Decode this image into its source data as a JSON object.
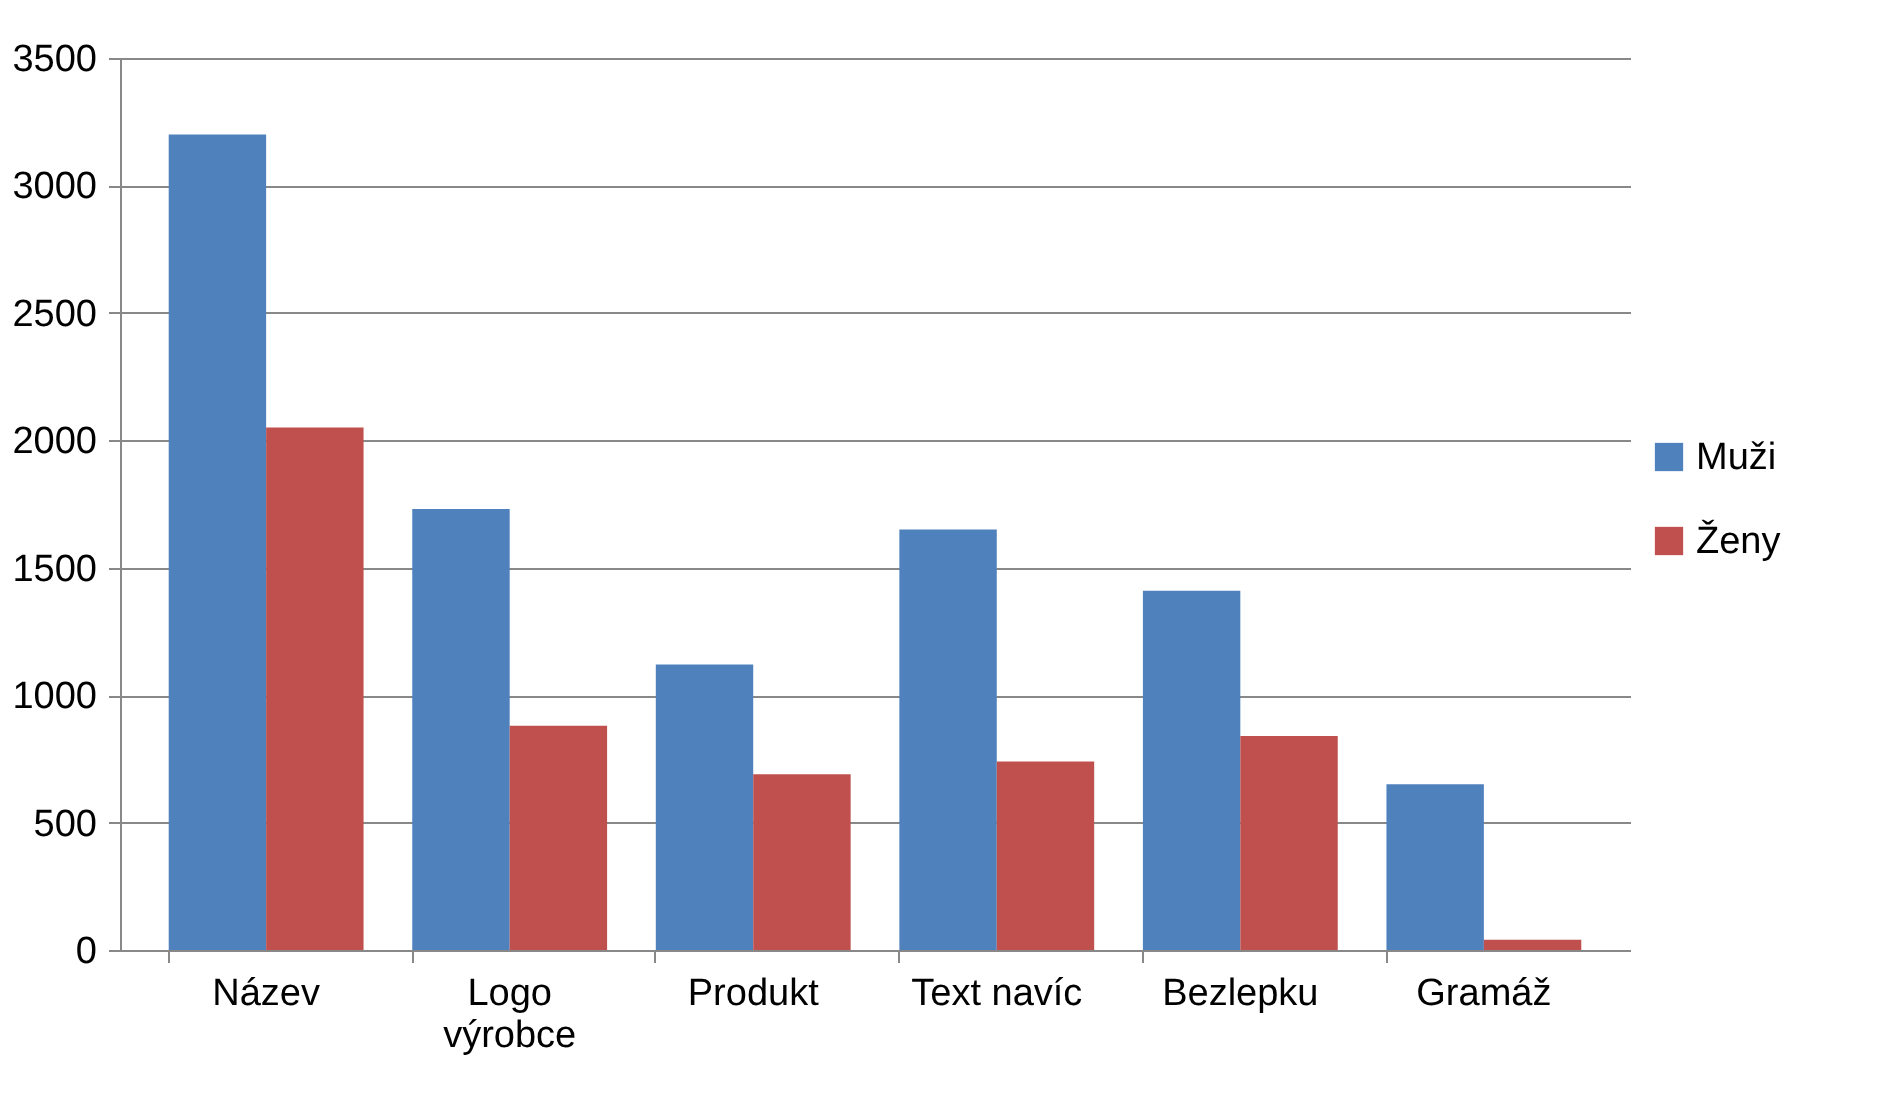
{
  "chart_data": {
    "type": "bar",
    "categories": [
      "Název",
      "Logo výrobce",
      "Produkt",
      "Text navíc",
      "Bezlepku",
      "Gramáž"
    ],
    "series": [
      {
        "name": "Muži",
        "color": "#4f81bd",
        "values": [
          3200,
          1730,
          1120,
          1650,
          1410,
          650
        ]
      },
      {
        "name": "Ženy",
        "color": "#c0504d",
        "values": [
          2050,
          880,
          690,
          740,
          840,
          40
        ]
      }
    ],
    "ylim": [
      0,
      3500
    ],
    "yticks": [
      0,
      500,
      1000,
      1500,
      2000,
      2500,
      3000,
      3500
    ],
    "grid": "y",
    "legend": "right"
  }
}
